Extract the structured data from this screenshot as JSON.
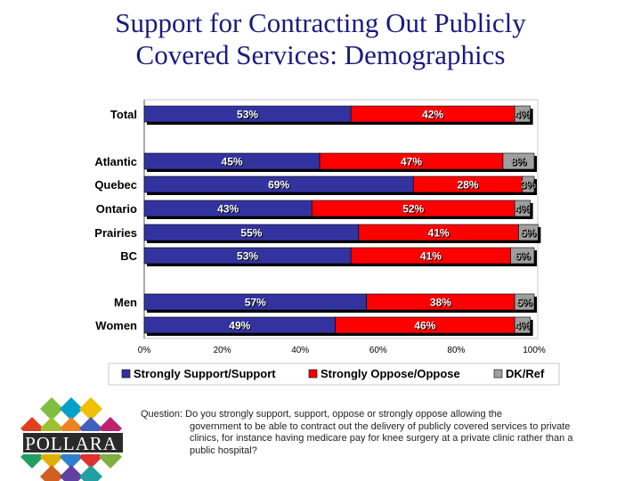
{
  "title_line1": "Support for Contracting Out Publicly",
  "title_line2": "Covered Services: Demographics",
  "question_lead": "Question: Do you strongly support, support, oppose or strongly oppose allowing the",
  "question_rest": "government to be able to contract out the delivery of publicly covered services to private clinics, for instance having medicare pay for knee surgery at a private clinic rather than a public hospital?",
  "logo_text": "POLLARA",
  "logo_tm": "™",
  "colors": {
    "support": "#3333a0",
    "oppose": "#ff0000",
    "dk": "#a0a0a0",
    "label_text": "#ffffff",
    "title": "#1a1a80"
  },
  "chart_data": {
    "type": "bar",
    "orientation": "horizontal",
    "stacked": true,
    "categories": [
      "Total",
      "Atlantic",
      "Quebec",
      "Ontario",
      "Prairies",
      "BC",
      "Men",
      "Women"
    ],
    "series": [
      {
        "name": "Strongly Support/Support",
        "values": [
          53,
          45,
          69,
          43,
          55,
          53,
          57,
          49
        ],
        "labels": [
          "53%",
          "45%",
          "69%",
          "43%",
          "55%",
          "53%",
          "57%",
          "49%"
        ]
      },
      {
        "name": "Strongly Oppose/Oppose",
        "values": [
          42,
          47,
          28,
          52,
          41,
          41,
          38,
          46
        ],
        "labels": [
          "42%",
          "47%",
          "28%",
          "52%",
          "41%",
          "41%",
          "38%",
          "46%"
        ]
      },
      {
        "name": "DK/Ref",
        "values": [
          4,
          8,
          3,
          4,
          5,
          6,
          5,
          4
        ],
        "labels": [
          "4%",
          "8%",
          "3%",
          "4%",
          "5%",
          "6%",
          "5%",
          "4%"
        ]
      }
    ],
    "xticks": [
      "0%",
      "20%",
      "40%",
      "60%",
      "80%",
      "100%"
    ],
    "xlim": [
      0,
      100
    ],
    "legend": [
      "Strongly Support/Support",
      "Strongly Oppose/Oppose",
      "DK/Ref"
    ],
    "legend_position": "bottom",
    "grid": false
  }
}
